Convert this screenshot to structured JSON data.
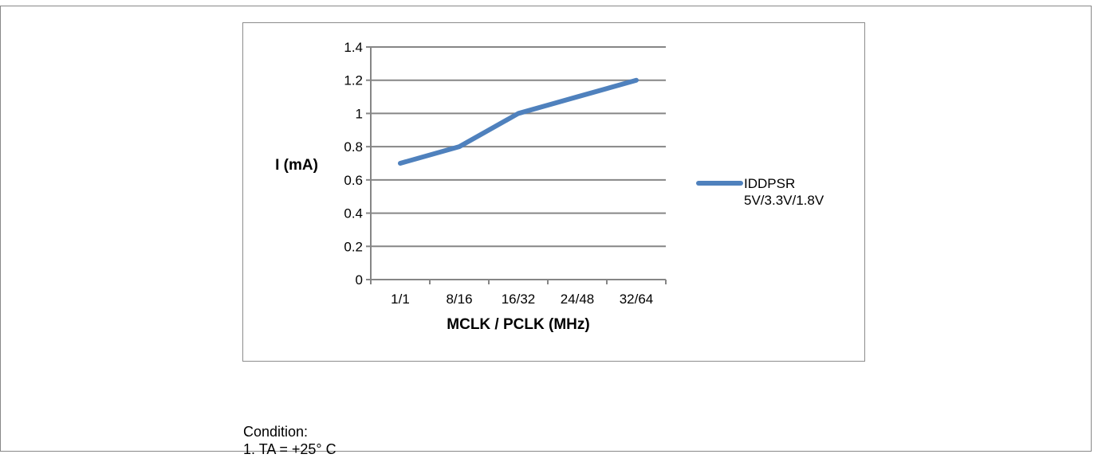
{
  "chart_data": {
    "type": "line",
    "categories": [
      "1/1",
      "8/16",
      "16/32",
      "24/48",
      "32/64"
    ],
    "series": [
      {
        "name": "IDDPSR 5V/3.3V/1.8V",
        "legend_lines": [
          "IDDPSR",
          "5V/3.3V/1.8V"
        ],
        "values": [
          0.7,
          0.8,
          1.0,
          1.1,
          1.2
        ],
        "color": "#4f81bd"
      }
    ],
    "xlabel": "MCLK / PCLK (MHz)",
    "ylabel": "I (mA)",
    "ylim": [
      0,
      1.4
    ],
    "yticks": [
      0,
      0.2,
      0.4,
      0.6,
      0.8,
      1,
      1.2,
      1.4
    ],
    "ytick_labels": [
      "0",
      "0.2",
      "0.4",
      "0.6",
      "0.8",
      "1",
      "1.2",
      "1.4"
    ],
    "grid": true,
    "legend_position": "right"
  },
  "notes": {
    "heading": "Condition:",
    "item1": "1. TA = +25° C"
  }
}
